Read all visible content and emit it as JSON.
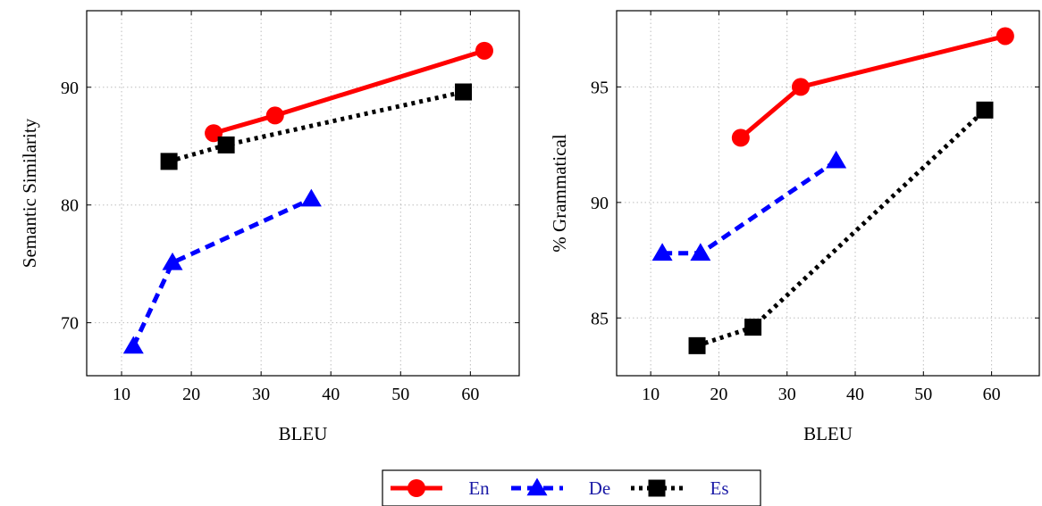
{
  "chart_data": [
    {
      "type": "line",
      "xlabel": "BLEU",
      "ylabel": "Semantic Similarity",
      "xlim": [
        5,
        67
      ],
      "ylim": [
        65.5,
        96.5
      ],
      "xticks": [
        10,
        20,
        30,
        40,
        50,
        60
      ],
      "yticks": [
        70,
        80,
        90
      ],
      "grid": true,
      "series": [
        {
          "name": "En",
          "color": "#ff0000",
          "marker": "circle",
          "dash": "solid",
          "x": [
            23.2,
            32.0,
            62.0
          ],
          "y": [
            86.1,
            87.6,
            93.1
          ]
        },
        {
          "name": "De",
          "color": "#0000ff",
          "marker": "triangle",
          "dash": "dashed",
          "x": [
            11.7,
            17.3,
            37.2
          ],
          "y": [
            68.0,
            75.1,
            80.5
          ]
        },
        {
          "name": "Es",
          "color": "#000000",
          "marker": "square",
          "dash": "dotted",
          "x": [
            16.8,
            25.0,
            59.0
          ],
          "y": [
            83.7,
            85.1,
            89.6
          ]
        }
      ]
    },
    {
      "type": "line",
      "xlabel": "BLEU",
      "ylabel": "% Grammatical",
      "xlim": [
        5,
        67
      ],
      "ylim": [
        82.5,
        98.3
      ],
      "xticks": [
        10,
        20,
        30,
        40,
        50,
        60
      ],
      "yticks": [
        85,
        90,
        95
      ],
      "grid": true,
      "series": [
        {
          "name": "En",
          "color": "#ff0000",
          "marker": "circle",
          "dash": "solid",
          "x": [
            23.2,
            32.0,
            62.0
          ],
          "y": [
            92.8,
            95.0,
            97.2
          ]
        },
        {
          "name": "De",
          "color": "#0000ff",
          "marker": "triangle",
          "dash": "dashed",
          "x": [
            11.7,
            17.3,
            37.2
          ],
          "y": [
            87.8,
            87.8,
            91.8
          ]
        },
        {
          "name": "Es",
          "color": "#000000",
          "marker": "square",
          "dash": "dotted",
          "x": [
            16.8,
            25.0,
            59.0
          ],
          "y": [
            83.8,
            84.6,
            94.0
          ]
        }
      ]
    }
  ],
  "legend": {
    "position": "bottom-center",
    "items": [
      {
        "label": "En",
        "color": "#ff0000",
        "marker": "circle",
        "dash": "solid"
      },
      {
        "label": "De",
        "color": "#0000ff",
        "marker": "triangle",
        "dash": "dashed"
      },
      {
        "label": "Es",
        "color": "#000000",
        "marker": "square",
        "dash": "dotted"
      }
    ]
  }
}
